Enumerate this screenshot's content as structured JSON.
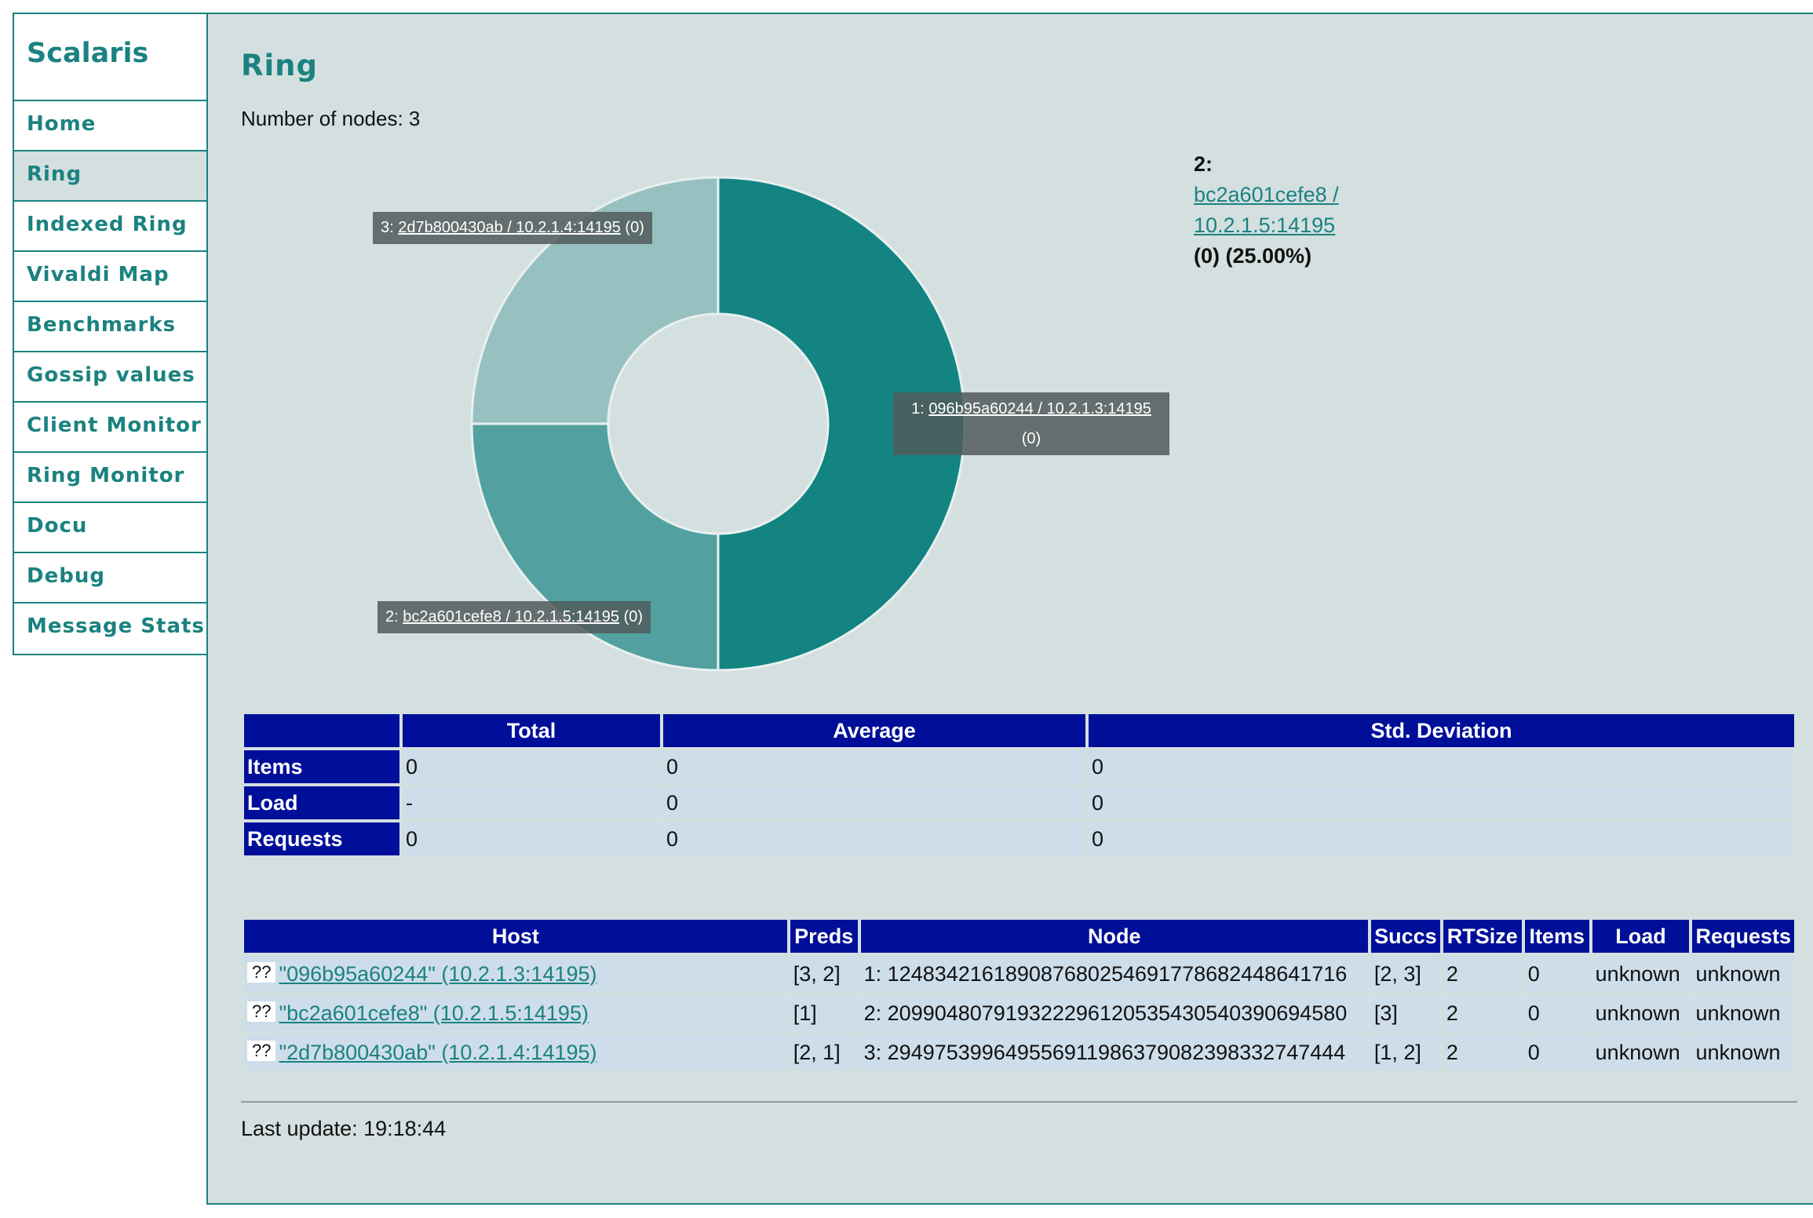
{
  "app": {
    "logo": "Scalaris"
  },
  "sidebar": {
    "items": [
      {
        "label": "Home"
      },
      {
        "label": "Ring",
        "active": true
      },
      {
        "label": "Indexed Ring"
      },
      {
        "label": "Vivaldi Map"
      },
      {
        "label": "Benchmarks"
      },
      {
        "label": "Gossip values"
      },
      {
        "label": "Client Monitor"
      },
      {
        "label": "Ring Monitor"
      },
      {
        "label": "Docu"
      },
      {
        "label": "Debug"
      },
      {
        "label": "Message Stats"
      }
    ]
  },
  "page": {
    "title": "Ring",
    "node_count": "Number of nodes: 3",
    "last_update": "Last update: 19:18:44"
  },
  "chart_data": {
    "type": "pie",
    "slices": [
      {
        "label": "1: 096b95a60244 / 10.2.1.3:14195 (0)",
        "value": 50.0,
        "color": "#138482"
      },
      {
        "label": "2: bc2a601cefe8 / 10.2.1.5:14195 (0)",
        "value": 25.0,
        "color": "#52a1a0"
      },
      {
        "label": "3: 2d7b800430ab / 10.2.1.4:14195 (0)",
        "value": 25.0,
        "color": "#97c1c0"
      }
    ]
  },
  "tooltips": {
    "t1": {
      "prefix": "1: ",
      "link": "096b95a60244 / 10.2.1.3:14195",
      "suffix": "(0)"
    },
    "t2": {
      "prefix": "2: ",
      "link": "bc2a601cefe8 / 10.2.1.5:14195",
      "suffix": " (0)"
    },
    "t3": {
      "prefix": "3: ",
      "link": "2d7b800430ab / 10.2.1.4:14195",
      "suffix": " (0)"
    }
  },
  "legend": {
    "index": "2:",
    "link_line1": "bc2a601cefe8 /",
    "link_line2": "10.2.1.5:14195",
    "detail": "(0) (25.00%)"
  },
  "stats_table": {
    "headers": [
      "",
      "Total",
      "Average",
      "Std. Deviation"
    ],
    "rows": [
      {
        "name": "Items",
        "total": "0",
        "average": "0",
        "stddev": "0"
      },
      {
        "name": "Load",
        "total": "-",
        "average": "0",
        "stddev": "0"
      },
      {
        "name": "Requests",
        "total": "0",
        "average": "0",
        "stddev": "0"
      }
    ]
  },
  "hosts_table": {
    "headers": [
      "Host",
      "Preds",
      "Node",
      "Succs",
      "RTSize",
      "Items",
      "Load",
      "Requests"
    ],
    "rows": [
      {
        "icon": "??",
        "host": "\"096b95a60244\" (10.2.1.3:14195)",
        "preds": "[3, 2]",
        "node": "1: 124834216189087680254691778682448641716",
        "succs": "[2, 3]",
        "rtsize": "2",
        "items": "0",
        "load": "unknown",
        "requests": "unknown"
      },
      {
        "icon": "??",
        "host": "\"bc2a601cefe8\" (10.2.1.5:14195)",
        "preds": "[1]",
        "node": "2: 209904807919322296120535430540390694580",
        "succs": "[3]",
        "rtsize": "2",
        "items": "0",
        "load": "unknown",
        "requests": "unknown"
      },
      {
        "icon": "??",
        "host": "\"2d7b800430ab\" (10.2.1.4:14195)",
        "preds": "[2, 1]",
        "node": "3: 294975399649556911986379082398332747444",
        "succs": "[1, 2]",
        "rtsize": "2",
        "items": "0",
        "load": "unknown",
        "requests": "unknown"
      }
    ]
  }
}
